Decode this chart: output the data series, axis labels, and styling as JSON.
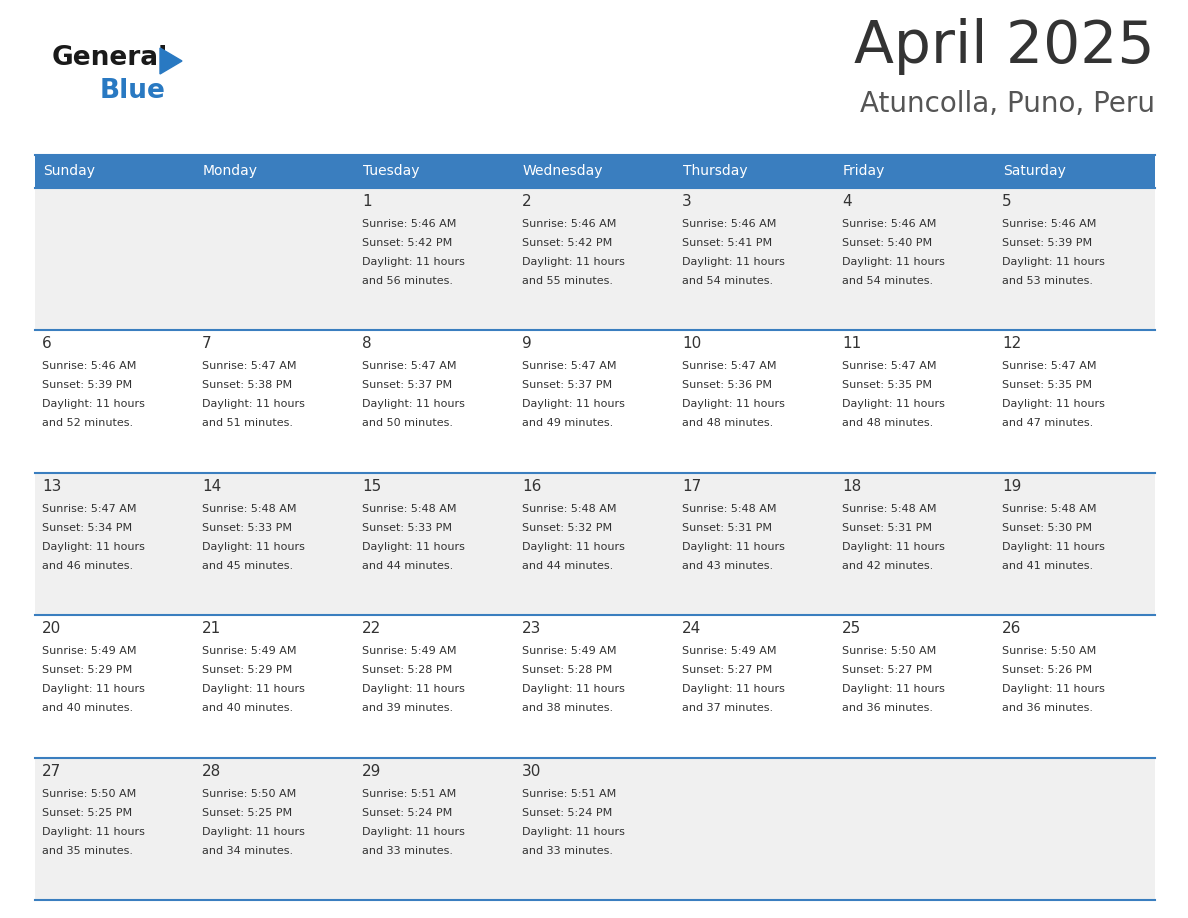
{
  "title": "April 2025",
  "subtitle": "Atuncolla, Puno, Peru",
  "days_of_week": [
    "Sunday",
    "Monday",
    "Tuesday",
    "Wednesday",
    "Thursday",
    "Friday",
    "Saturday"
  ],
  "header_bg": "#3a7ebf",
  "header_text": "#ffffff",
  "row_bg_odd": "#f0f0f0",
  "row_bg_even": "#ffffff",
  "day_num_color": "#333333",
  "text_color": "#333333",
  "line_color": "#3a7ebf",
  "title_color": "#333333",
  "subtitle_color": "#555555",
  "logo_general_color": "#1a1a1a",
  "logo_blue_color": "#2979c2",
  "calendar_data": [
    {
      "day": 1,
      "col": 2,
      "row": 0,
      "sunrise": "5:46 AM",
      "sunset": "5:42 PM",
      "daylight": "11 hours and 56 minutes."
    },
    {
      "day": 2,
      "col": 3,
      "row": 0,
      "sunrise": "5:46 AM",
      "sunset": "5:42 PM",
      "daylight": "11 hours and 55 minutes."
    },
    {
      "day": 3,
      "col": 4,
      "row": 0,
      "sunrise": "5:46 AM",
      "sunset": "5:41 PM",
      "daylight": "11 hours and 54 minutes."
    },
    {
      "day": 4,
      "col": 5,
      "row": 0,
      "sunrise": "5:46 AM",
      "sunset": "5:40 PM",
      "daylight": "11 hours and 54 minutes."
    },
    {
      "day": 5,
      "col": 6,
      "row": 0,
      "sunrise": "5:46 AM",
      "sunset": "5:39 PM",
      "daylight": "11 hours and 53 minutes."
    },
    {
      "day": 6,
      "col": 0,
      "row": 1,
      "sunrise": "5:46 AM",
      "sunset": "5:39 PM",
      "daylight": "11 hours and 52 minutes."
    },
    {
      "day": 7,
      "col": 1,
      "row": 1,
      "sunrise": "5:47 AM",
      "sunset": "5:38 PM",
      "daylight": "11 hours and 51 minutes."
    },
    {
      "day": 8,
      "col": 2,
      "row": 1,
      "sunrise": "5:47 AM",
      "sunset": "5:37 PM",
      "daylight": "11 hours and 50 minutes."
    },
    {
      "day": 9,
      "col": 3,
      "row": 1,
      "sunrise": "5:47 AM",
      "sunset": "5:37 PM",
      "daylight": "11 hours and 49 minutes."
    },
    {
      "day": 10,
      "col": 4,
      "row": 1,
      "sunrise": "5:47 AM",
      "sunset": "5:36 PM",
      "daylight": "11 hours and 48 minutes."
    },
    {
      "day": 11,
      "col": 5,
      "row": 1,
      "sunrise": "5:47 AM",
      "sunset": "5:35 PM",
      "daylight": "11 hours and 48 minutes."
    },
    {
      "day": 12,
      "col": 6,
      "row": 1,
      "sunrise": "5:47 AM",
      "sunset": "5:35 PM",
      "daylight": "11 hours and 47 minutes."
    },
    {
      "day": 13,
      "col": 0,
      "row": 2,
      "sunrise": "5:47 AM",
      "sunset": "5:34 PM",
      "daylight": "11 hours and 46 minutes."
    },
    {
      "day": 14,
      "col": 1,
      "row": 2,
      "sunrise": "5:48 AM",
      "sunset": "5:33 PM",
      "daylight": "11 hours and 45 minutes."
    },
    {
      "day": 15,
      "col": 2,
      "row": 2,
      "sunrise": "5:48 AM",
      "sunset": "5:33 PM",
      "daylight": "11 hours and 44 minutes."
    },
    {
      "day": 16,
      "col": 3,
      "row": 2,
      "sunrise": "5:48 AM",
      "sunset": "5:32 PM",
      "daylight": "11 hours and 44 minutes."
    },
    {
      "day": 17,
      "col": 4,
      "row": 2,
      "sunrise": "5:48 AM",
      "sunset": "5:31 PM",
      "daylight": "11 hours and 43 minutes."
    },
    {
      "day": 18,
      "col": 5,
      "row": 2,
      "sunrise": "5:48 AM",
      "sunset": "5:31 PM",
      "daylight": "11 hours and 42 minutes."
    },
    {
      "day": 19,
      "col": 6,
      "row": 2,
      "sunrise": "5:48 AM",
      "sunset": "5:30 PM",
      "daylight": "11 hours and 41 minutes."
    },
    {
      "day": 20,
      "col": 0,
      "row": 3,
      "sunrise": "5:49 AM",
      "sunset": "5:29 PM",
      "daylight": "11 hours and 40 minutes."
    },
    {
      "day": 21,
      "col": 1,
      "row": 3,
      "sunrise": "5:49 AM",
      "sunset": "5:29 PM",
      "daylight": "11 hours and 40 minutes."
    },
    {
      "day": 22,
      "col": 2,
      "row": 3,
      "sunrise": "5:49 AM",
      "sunset": "5:28 PM",
      "daylight": "11 hours and 39 minutes."
    },
    {
      "day": 23,
      "col": 3,
      "row": 3,
      "sunrise": "5:49 AM",
      "sunset": "5:28 PM",
      "daylight": "11 hours and 38 minutes."
    },
    {
      "day": 24,
      "col": 4,
      "row": 3,
      "sunrise": "5:49 AM",
      "sunset": "5:27 PM",
      "daylight": "11 hours and 37 minutes."
    },
    {
      "day": 25,
      "col": 5,
      "row": 3,
      "sunrise": "5:50 AM",
      "sunset": "5:27 PM",
      "daylight": "11 hours and 36 minutes."
    },
    {
      "day": 26,
      "col": 6,
      "row": 3,
      "sunrise": "5:50 AM",
      "sunset": "5:26 PM",
      "daylight": "11 hours and 36 minutes."
    },
    {
      "day": 27,
      "col": 0,
      "row": 4,
      "sunrise": "5:50 AM",
      "sunset": "5:25 PM",
      "daylight": "11 hours and 35 minutes."
    },
    {
      "day": 28,
      "col": 1,
      "row": 4,
      "sunrise": "5:50 AM",
      "sunset": "5:25 PM",
      "daylight": "11 hours and 34 minutes."
    },
    {
      "day": 29,
      "col": 2,
      "row": 4,
      "sunrise": "5:51 AM",
      "sunset": "5:24 PM",
      "daylight": "11 hours and 33 minutes."
    },
    {
      "day": 30,
      "col": 3,
      "row": 4,
      "sunrise": "5:51 AM",
      "sunset": "5:24 PM",
      "daylight": "11 hours and 33 minutes."
    }
  ]
}
